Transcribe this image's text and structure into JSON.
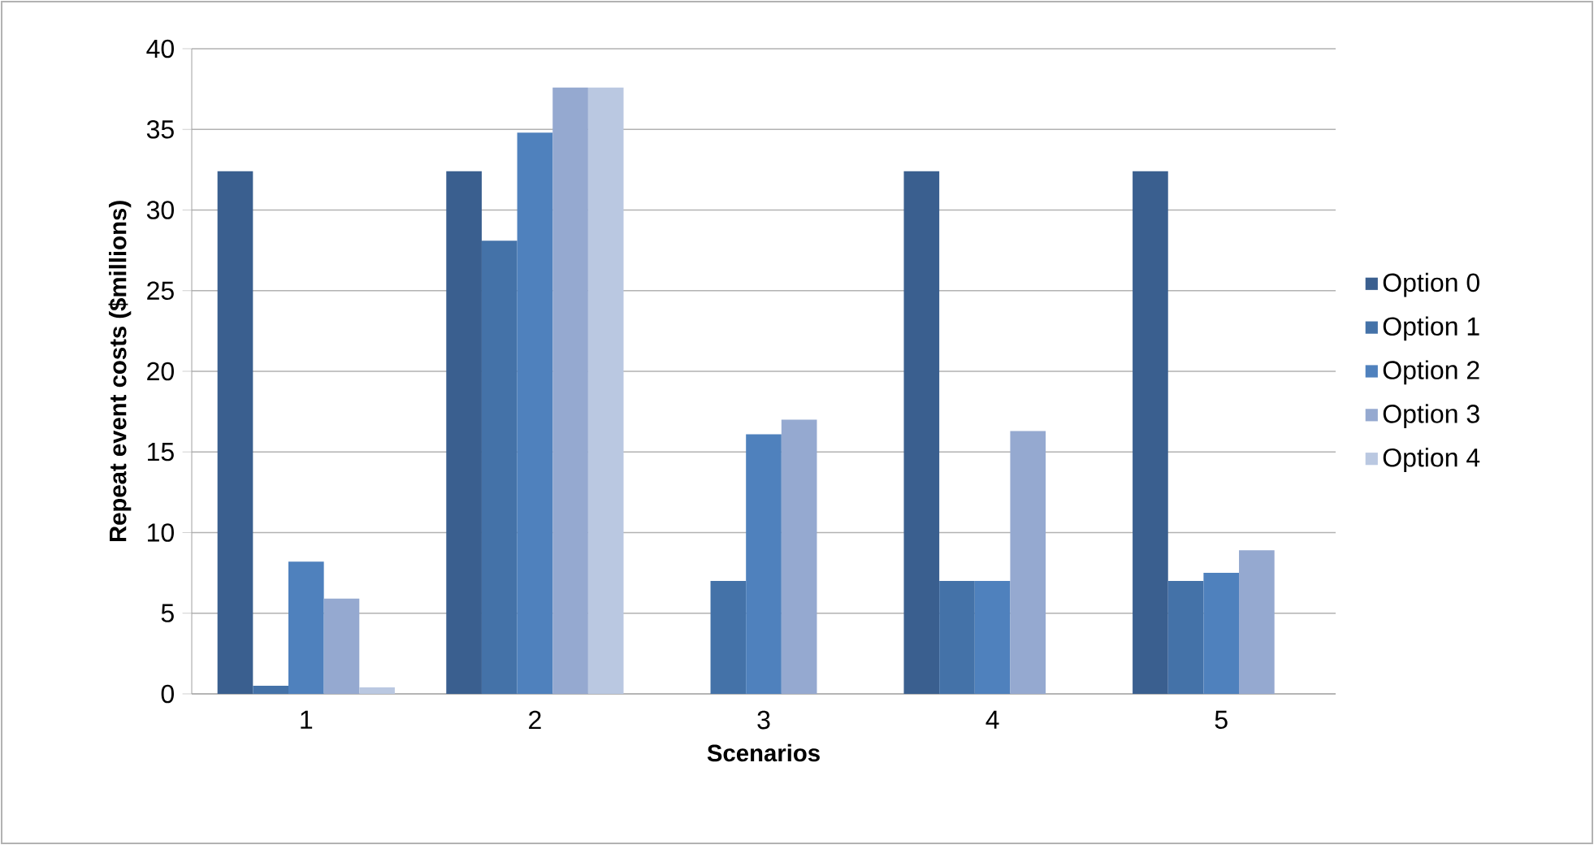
{
  "chart_data": {
    "type": "bar",
    "xlabel": "Scenarios",
    "ylabel": "Repeat event costs ($millions)",
    "categories": [
      "1",
      "2",
      "3",
      "4",
      "5"
    ],
    "series": [
      {
        "name": "Option 0",
        "color": "#3a5f8f",
        "values": [
          32.4,
          32.4,
          null,
          32.4,
          32.4
        ]
      },
      {
        "name": "Option 1",
        "color": "#4472a8",
        "values": [
          0.5,
          28.1,
          7.0,
          7.0,
          7.0
        ]
      },
      {
        "name": "Option 2",
        "color": "#4f81bd",
        "values": [
          8.2,
          34.8,
          16.1,
          7.0,
          7.5
        ]
      },
      {
        "name": "Option 3",
        "color": "#95a9d0",
        "values": [
          5.9,
          37.6,
          17.0,
          16.3,
          8.9
        ]
      },
      {
        "name": "Option 4",
        "color": "#bac8e1",
        "values": [
          0.4,
          37.6,
          null,
          null,
          null
        ]
      }
    ],
    "ylim": [
      0,
      40
    ],
    "yticks": [
      0,
      5,
      10,
      15,
      20,
      25,
      30,
      35,
      40
    ],
    "grid": "y",
    "legend": "right"
  }
}
